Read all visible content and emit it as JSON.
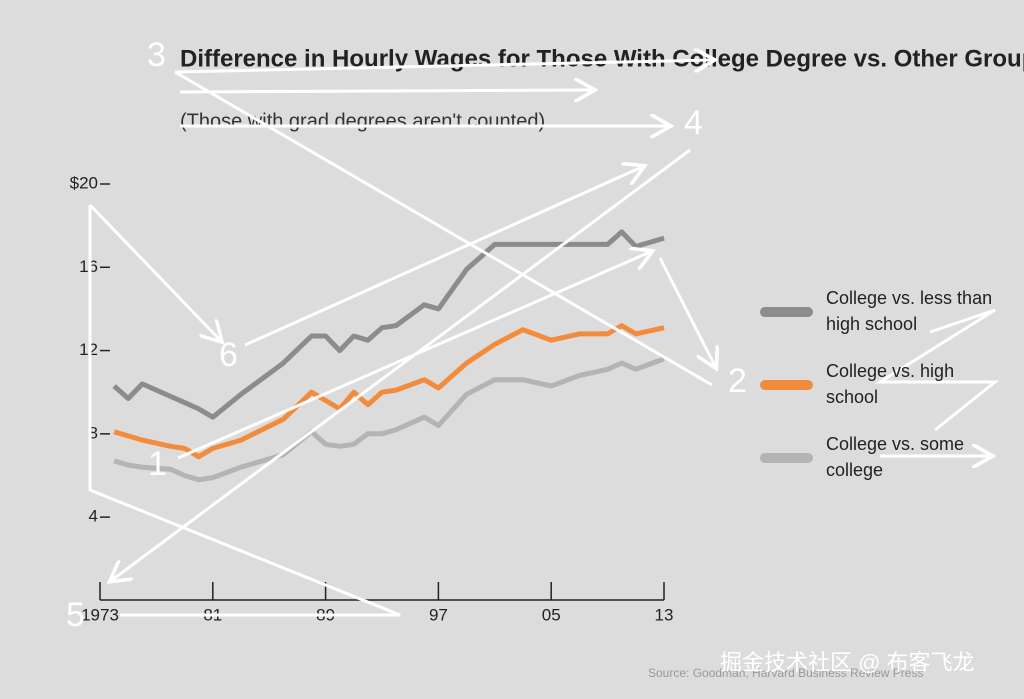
{
  "chart_data": {
    "type": "line",
    "title": "Difference in Hourly Wages for Those With College Degree vs. Other Group",
    "subtitle": "(Those with grad degrees aren't counted)",
    "source": "Source: Goodman, Harvard Business Review Press",
    "x": [
      1974,
      1975,
      1976,
      1978,
      1979,
      1980,
      1981,
      1983,
      1986,
      1988,
      1989,
      1990,
      1991,
      1992,
      1993,
      1994,
      1996,
      1997,
      1999,
      2001,
      2003,
      2005,
      2007,
      2009,
      2010,
      2011,
      2013
    ],
    "xlim": [
      1973,
      2013
    ],
    "xticks": [
      1973,
      {
        "value": 1981,
        "label": "81"
      },
      {
        "value": 1989,
        "label": "89"
      },
      {
        "value": 1997,
        "label": "97"
      },
      {
        "value": 2005,
        "label": "05"
      },
      {
        "value": 2013,
        "label": "13"
      }
    ],
    "ylim": [
      0.5,
      20
    ],
    "yticks": [
      {
        "value": 20,
        "label": "$20"
      },
      16,
      12,
      8,
      4
    ],
    "series": [
      {
        "name": "College vs. less than high school",
        "color": "#8c8c8c",
        "values": [
          10.3,
          9.7,
          10.4,
          9.8,
          9.5,
          9.2,
          8.8,
          9.9,
          11.4,
          12.7,
          12.7,
          12.0,
          12.7,
          12.5,
          13.1,
          13.2,
          14.2,
          14.0,
          15.9,
          17.1,
          17.1,
          17.1,
          17.1,
          17.1,
          17.7,
          17.0,
          17.4
        ]
      },
      {
        "name": "College vs. high school",
        "color": "#f28c3c",
        "values": [
          8.1,
          7.9,
          7.7,
          7.4,
          7.3,
          6.9,
          7.3,
          7.7,
          8.7,
          10.0,
          9.6,
          9.2,
          10.0,
          9.4,
          10.0,
          10.1,
          10.6,
          10.2,
          11.4,
          12.3,
          13.0,
          12.5,
          12.8,
          12.8,
          13.2,
          12.8,
          13.1
        ]
      },
      {
        "name": "College vs. some college",
        "color": "#b4b4b4",
        "values": [
          6.7,
          6.5,
          6.4,
          6.3,
          6.0,
          5.8,
          5.9,
          6.4,
          7.0,
          8.1,
          7.5,
          7.4,
          7.5,
          8.0,
          8.0,
          8.2,
          8.8,
          8.4,
          9.9,
          10.6,
          10.6,
          10.3,
          10.8,
          11.1,
          11.4,
          11.1,
          11.6
        ]
      }
    ]
  },
  "overlay_labels": [
    "1",
    "2",
    "3",
    "4",
    "5",
    "6"
  ],
  "watermark": "掘金技术社区 @ 布客飞龙"
}
